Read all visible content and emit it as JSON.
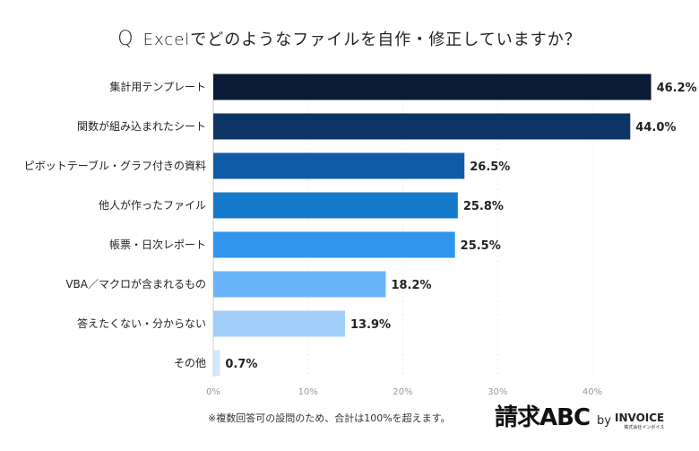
{
  "chart_data": {
    "type": "bar",
    "orientation": "horizontal",
    "title_prefix": "Q",
    "title": "Excelでどのようなファイルを自作・修正していますか？",
    "categories": [
      "集計用テンプレート",
      "関数が組み込まれたシート",
      "ピボットテーブル・グラフ付きの資料",
      "他人が作ったファイル",
      "帳票・日次レポート",
      "VBA／マクロが含まれるもの",
      "答えたくない・分からない",
      "その他"
    ],
    "values": [
      46.2,
      44.0,
      26.5,
      25.8,
      25.5,
      18.2,
      13.9,
      0.7
    ],
    "value_labels": [
      "46.2%",
      "44.0%",
      "26.5%",
      "25.8%",
      "25.5%",
      "18.2%",
      "13.9%",
      "0.7%"
    ],
    "colors": [
      "#0b1a35",
      "#0d3466",
      "#105ba8",
      "#157ac9",
      "#3195ee",
      "#6ab4fa",
      "#a0cff9",
      "#d2e7fa"
    ],
    "xlim": [
      0,
      46.2
    ],
    "xticks": [
      0,
      10,
      20,
      30,
      40
    ],
    "xtick_labels": [
      "0%",
      "10%",
      "20%",
      "30%",
      "40%"
    ],
    "grid": true
  },
  "footnote": "※複数回答可の設問のため、合計は100%を超えます。",
  "logo": {
    "main": "請求ABC",
    "by": "by",
    "brand": "INVOICE",
    "sub": "株式会社インボイス"
  }
}
